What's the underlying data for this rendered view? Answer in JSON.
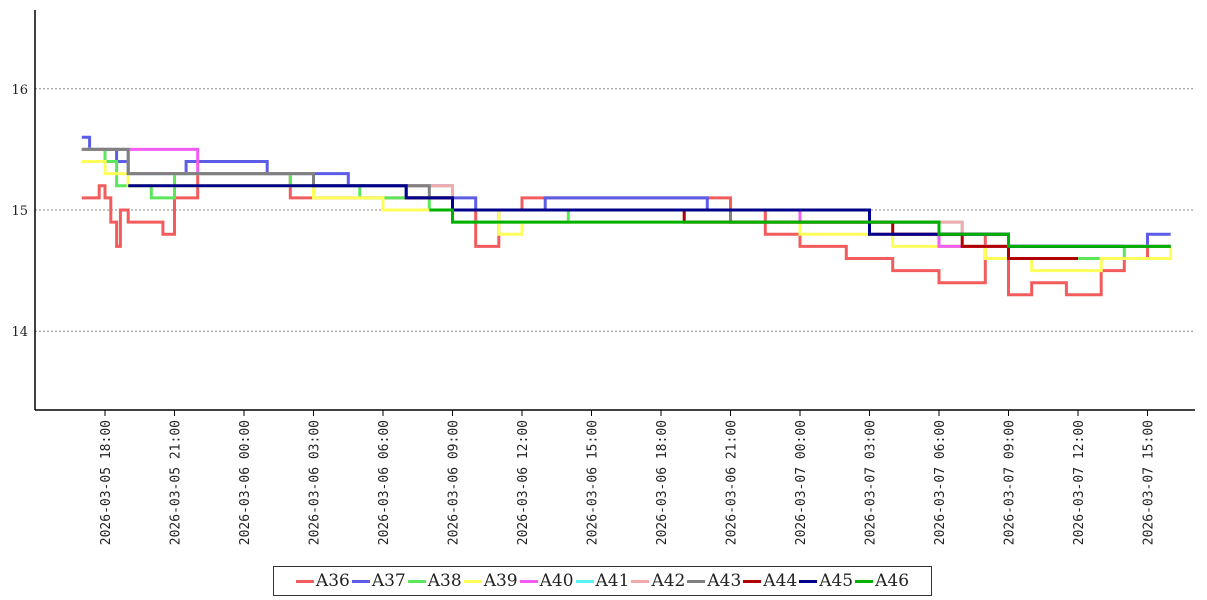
{
  "chart_data": {
    "type": "line",
    "title": "",
    "xlabel": "",
    "ylabel": "",
    "ylim": [
      13.35,
      16.65
    ],
    "xlim": [
      "2026-03-05 16:00",
      "2026-03-07 16:20"
    ],
    "grid": "horizontal dotted",
    "legend_position": "bottom-center",
    "y_ticks": [
      14,
      15,
      16
    ],
    "y_tick_labels": [
      "14",
      "15",
      "16"
    ],
    "x_ticks": [
      "2026-03-05 18:00",
      "2026-03-05 21:00",
      "2026-03-06 00:00",
      "2026-03-06 03:00",
      "2026-03-06 06:00",
      "2026-03-06 09:00",
      "2026-03-06 12:00",
      "2026-03-06 15:00",
      "2026-03-06 18:00",
      "2026-03-06 21:00",
      "2026-03-07 00:00",
      "2026-03-07 03:00",
      "2026-03-07 06:00",
      "2026-03-07 09:00",
      "2026-03-07 12:00",
      "2026-03-07 15:00"
    ],
    "x_tick_labels": [
      "2026-03-05 18:00",
      "2026-03-05 21:00",
      "2026-03-06 00:00",
      "2026-03-06 03:00",
      "2026-03-06 06:00",
      "2026-03-06 09:00",
      "2026-03-06 12:00",
      "2026-03-06 15:00",
      "2026-03-06 18:00",
      "2026-03-06 21:00",
      "2026-03-07 00:00",
      "2026-03-07 03:00",
      "2026-03-07 06:00",
      "2026-03-07 09:00",
      "2026-03-07 12:00",
      "2026-03-07 15:00"
    ],
    "series": [
      {
        "name": "A36",
        "color": "#f25c5c",
        "points": [
          [
            "2026-03-05 17:00",
            15.1
          ],
          [
            "2026-03-05 17:45",
            15.2
          ],
          [
            "2026-03-05 18:00",
            15.1
          ],
          [
            "2026-03-05 18:15",
            14.9
          ],
          [
            "2026-03-05 18:30",
            14.7
          ],
          [
            "2026-03-05 18:40",
            15.0
          ],
          [
            "2026-03-05 19:00",
            14.9
          ],
          [
            "2026-03-05 20:30",
            14.8
          ],
          [
            "2026-03-05 21:00",
            15.1
          ],
          [
            "2026-03-05 22:00",
            15.3
          ],
          [
            "2026-03-06 02:00",
            15.1
          ],
          [
            "2026-03-06 09:00",
            15.0
          ],
          [
            "2026-03-06 10:00",
            14.7
          ],
          [
            "2026-03-06 11:00",
            15.0
          ],
          [
            "2026-03-06 12:00",
            15.1
          ],
          [
            "2026-03-06 21:00",
            15.0
          ],
          [
            "2026-03-06 22:30",
            14.8
          ],
          [
            "2026-03-07 00:00",
            14.7
          ],
          [
            "2026-03-07 02:00",
            14.6
          ],
          [
            "2026-03-07 04:00",
            14.5
          ],
          [
            "2026-03-07 06:00",
            14.4
          ],
          [
            "2026-03-07 08:00",
            14.8
          ],
          [
            "2026-03-07 09:00",
            14.3
          ],
          [
            "2026-03-07 10:00",
            14.4
          ],
          [
            "2026-03-07 11:30",
            14.3
          ],
          [
            "2026-03-07 13:00",
            14.5
          ],
          [
            "2026-03-07 14:00",
            14.6
          ],
          [
            "2026-03-07 15:00",
            14.7
          ],
          [
            "2026-03-07 16:00",
            14.7
          ]
        ]
      },
      {
        "name": "A37",
        "color": "#5c5ce6",
        "points": [
          [
            "2026-03-05 17:00",
            15.6
          ],
          [
            "2026-03-05 17:20",
            15.5
          ],
          [
            "2026-03-05 18:30",
            15.4
          ],
          [
            "2026-03-05 19:00",
            15.3
          ],
          [
            "2026-03-05 21:30",
            15.4
          ],
          [
            "2026-03-06 01:00",
            15.3
          ],
          [
            "2026-03-06 04:30",
            15.2
          ],
          [
            "2026-03-06 07:00",
            15.1
          ],
          [
            "2026-03-06 10:00",
            15.0
          ],
          [
            "2026-03-06 13:00",
            15.1
          ],
          [
            "2026-03-06 20:00",
            15.0
          ],
          [
            "2026-03-07 03:00",
            14.9
          ],
          [
            "2026-03-07 06:00",
            14.8
          ],
          [
            "2026-03-07 09:00",
            14.7
          ],
          [
            "2026-03-07 14:00",
            14.7
          ],
          [
            "2026-03-07 15:00",
            14.8
          ],
          [
            "2026-03-07 16:00",
            14.8
          ]
        ]
      },
      {
        "name": "A38",
        "color": "#5ce65c",
        "points": [
          [
            "2026-03-05 17:00",
            15.5
          ],
          [
            "2026-03-05 18:00",
            15.4
          ],
          [
            "2026-03-05 18:30",
            15.2
          ],
          [
            "2026-03-05 20:00",
            15.1
          ],
          [
            "2026-03-05 21:00",
            15.3
          ],
          [
            "2026-03-06 02:00",
            15.2
          ],
          [
            "2026-03-06 05:00",
            15.1
          ],
          [
            "2026-03-06 08:00",
            15.0
          ],
          [
            "2026-03-06 09:00",
            14.9
          ],
          [
            "2026-03-06 10:00",
            14.9
          ],
          [
            "2026-03-06 14:00",
            15.0
          ],
          [
            "2026-03-06 21:00",
            14.9
          ],
          [
            "2026-03-07 03:00",
            14.8
          ],
          [
            "2026-03-07 06:00",
            14.7
          ],
          [
            "2026-03-07 09:00",
            14.6
          ],
          [
            "2026-03-07 12:00",
            14.6
          ],
          [
            "2026-03-07 14:00",
            14.7
          ],
          [
            "2026-03-07 16:00",
            14.7
          ]
        ]
      },
      {
        "name": "A39",
        "color": "#ffff5c",
        "points": [
          [
            "2026-03-05 17:00",
            15.4
          ],
          [
            "2026-03-05 18:00",
            15.3
          ],
          [
            "2026-03-05 19:00",
            15.2
          ],
          [
            "2026-03-05 21:00",
            15.2
          ],
          [
            "2026-03-06 00:00",
            15.2
          ],
          [
            "2026-03-06 03:00",
            15.1
          ],
          [
            "2026-03-06 06:00",
            15.0
          ],
          [
            "2026-03-06 09:00",
            15.0
          ],
          [
            "2026-03-06 11:00",
            14.8
          ],
          [
            "2026-03-06 12:00",
            14.9
          ],
          [
            "2026-03-06 18:00",
            14.9
          ],
          [
            "2026-03-07 00:00",
            14.8
          ],
          [
            "2026-03-07 04:00",
            14.7
          ],
          [
            "2026-03-07 08:00",
            14.6
          ],
          [
            "2026-03-07 10:00",
            14.5
          ],
          [
            "2026-03-07 13:00",
            14.6
          ],
          [
            "2026-03-07 15:00",
            14.6
          ],
          [
            "2026-03-07 16:00",
            14.7
          ]
        ]
      },
      {
        "name": "A40",
        "color": "#f25cf2",
        "points": [
          [
            "2026-03-05 17:00",
            15.5
          ],
          [
            "2026-03-05 22:00",
            15.3
          ],
          [
            "2026-03-06 03:00",
            15.2
          ],
          [
            "2026-03-06 09:00",
            15.0
          ],
          [
            "2026-03-06 18:00",
            15.0
          ],
          [
            "2026-03-07 00:00",
            14.9
          ],
          [
            "2026-03-07 03:00",
            14.8
          ],
          [
            "2026-03-07 06:00",
            14.7
          ],
          [
            "2026-03-07 15:00",
            14.7
          ],
          [
            "2026-03-07 16:00",
            14.7
          ]
        ]
      },
      {
        "name": "A41",
        "color": "#5cf2f2",
        "points": [
          [
            "2026-03-05 17:00",
            15.5
          ],
          [
            "2026-03-05 19:00",
            15.3
          ],
          [
            "2026-03-06 03:00",
            15.2
          ],
          [
            "2026-03-06 09:00",
            15.0
          ],
          [
            "2026-03-06 18:00",
            15.0
          ],
          [
            "2026-03-07 03:00",
            14.9
          ],
          [
            "2026-03-07 07:00",
            14.8
          ],
          [
            "2026-03-07 09:00",
            14.7
          ],
          [
            "2026-03-07 16:00",
            14.7
          ]
        ]
      },
      {
        "name": "A42",
        "color": "#f2aaaa",
        "points": [
          [
            "2026-03-05 17:00",
            15.5
          ],
          [
            "2026-03-05 19:00",
            15.3
          ],
          [
            "2026-03-06 03:00",
            15.2
          ],
          [
            "2026-03-06 09:00",
            15.0
          ],
          [
            "2026-03-06 20:00",
            15.0
          ],
          [
            "2026-03-07 03:00",
            14.9
          ],
          [
            "2026-03-07 07:00",
            14.8
          ],
          [
            "2026-03-07 09:00",
            14.7
          ],
          [
            "2026-03-07 16:00",
            14.7
          ]
        ]
      },
      {
        "name": "A43",
        "color": "#808080",
        "points": [
          [
            "2026-03-05 17:00",
            15.5
          ],
          [
            "2026-03-05 19:00",
            15.3
          ],
          [
            "2026-03-06 03:00",
            15.2
          ],
          [
            "2026-03-06 08:00",
            15.1
          ],
          [
            "2026-03-06 09:00",
            15.0
          ],
          [
            "2026-03-06 21:00",
            14.9
          ],
          [
            "2026-03-07 06:00",
            14.8
          ],
          [
            "2026-03-07 09:00",
            14.7
          ],
          [
            "2026-03-07 16:00",
            14.7
          ]
        ]
      },
      {
        "name": "A44",
        "color": "#b00000",
        "points": [
          [
            "2026-03-06 07:00",
            15.1
          ],
          [
            "2026-03-06 09:00",
            15.0
          ],
          [
            "2026-03-06 19:00",
            14.9
          ],
          [
            "2026-03-07 04:00",
            14.8
          ],
          [
            "2026-03-07 07:00",
            14.7
          ],
          [
            "2026-03-07 09:00",
            14.6
          ],
          [
            "2026-03-07 12:00",
            14.6
          ]
        ]
      },
      {
        "name": "A45",
        "color": "#00008b",
        "points": [
          [
            "2026-03-05 19:00",
            15.2
          ],
          [
            "2026-03-06 07:00",
            15.1
          ],
          [
            "2026-03-06 09:00",
            15.0
          ],
          [
            "2026-03-07 03:00",
            14.8
          ],
          [
            "2026-03-07 09:00",
            14.7
          ],
          [
            "2026-03-07 14:00",
            14.7
          ]
        ]
      },
      {
        "name": "A46",
        "color": "#00b000",
        "points": [
          [
            "2026-03-06 08:00",
            15.0
          ],
          [
            "2026-03-06 09:00",
            14.9
          ],
          [
            "2026-03-07 06:00",
            14.8
          ],
          [
            "2026-03-07 09:00",
            14.7
          ],
          [
            "2026-03-07 16:00",
            14.7
          ]
        ]
      }
    ]
  }
}
